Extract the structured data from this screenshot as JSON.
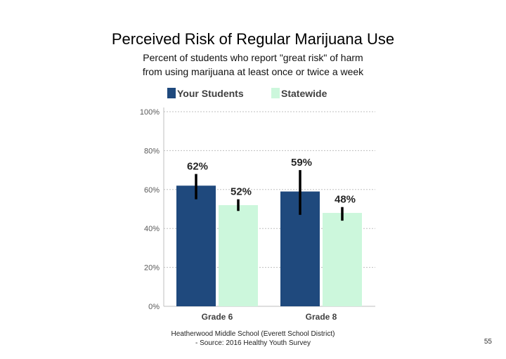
{
  "slide": {
    "title": "Perceived Risk of Regular Marijuana Use",
    "subtitle_line1": "Percent of students who report \"great risk\" of harm",
    "subtitle_line2": "from using marijuana at least once or twice a week",
    "footer_line1": "Heatherwood Middle School (Everett School District)",
    "footer_line2": "- Source: 2016 Healthy Youth Survey",
    "page_number": "55"
  },
  "chart_data": {
    "type": "bar",
    "categories": [
      "Grade 6",
      "Grade 8"
    ],
    "series": [
      {
        "name": "Your Students",
        "values": [
          62,
          59
        ],
        "labels": [
          "62%",
          "59%"
        ],
        "error_low": [
          55,
          47
        ],
        "error_high": [
          68,
          70
        ],
        "color": "#1f497d"
      },
      {
        "name": "Statewide",
        "values": [
          52,
          48
        ],
        "labels": [
          "52%",
          "48%"
        ],
        "error_low": [
          49,
          44
        ],
        "error_high": [
          55,
          51
        ],
        "color": "#ccf7dc"
      }
    ],
    "yticks": [
      "0%",
      "20%",
      "40%",
      "60%",
      "80%",
      "100%"
    ],
    "ytick_values": [
      0,
      20,
      40,
      60,
      80,
      100
    ],
    "ylim": [
      0,
      100
    ],
    "grid": true,
    "legend_position": "top-left",
    "error_bar_color": "#000000",
    "axis_color": "#bfbfbf",
    "grid_color": "#bfbfbf"
  }
}
